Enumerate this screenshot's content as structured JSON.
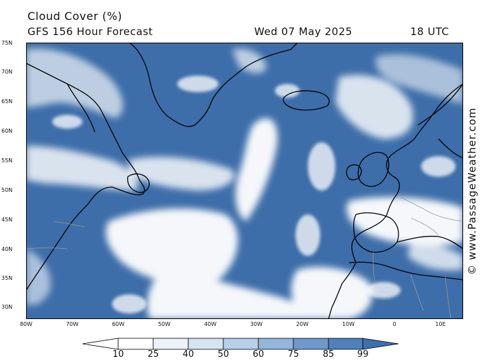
{
  "header": {
    "title": "Cloud Cover (%)",
    "subtitle": "GFS 156 Hour Forecast",
    "datetime": "Wed 07 May 2025",
    "utc": "18 UTC"
  },
  "credit": "© www.PassageWeather.com",
  "axes": {
    "lat_labels": [
      "75N",
      "70N",
      "65N",
      "60N",
      "55N",
      "50N",
      "45N",
      "40N",
      "35N",
      "30N"
    ],
    "lon_labels": [
      "80W",
      "70W",
      "60W",
      "50W",
      "40W",
      "30W",
      "20W",
      "10W",
      "0",
      "10E"
    ]
  },
  "legend": {
    "labels": [
      "10",
      "25",
      "40",
      "50",
      "60",
      "75",
      "85",
      "99"
    ],
    "colors": [
      "#ffffff",
      "#eef3fa",
      "#d6e3f1",
      "#b8cfe7",
      "#94b6da",
      "#6e99cb",
      "#4f80bb",
      "#3e6fae"
    ]
  },
  "colors": {
    "ocean_cloud": "#3d6ea9",
    "clear": "#ffffff",
    "coast": "#000000",
    "border": "#9a9a9a"
  }
}
